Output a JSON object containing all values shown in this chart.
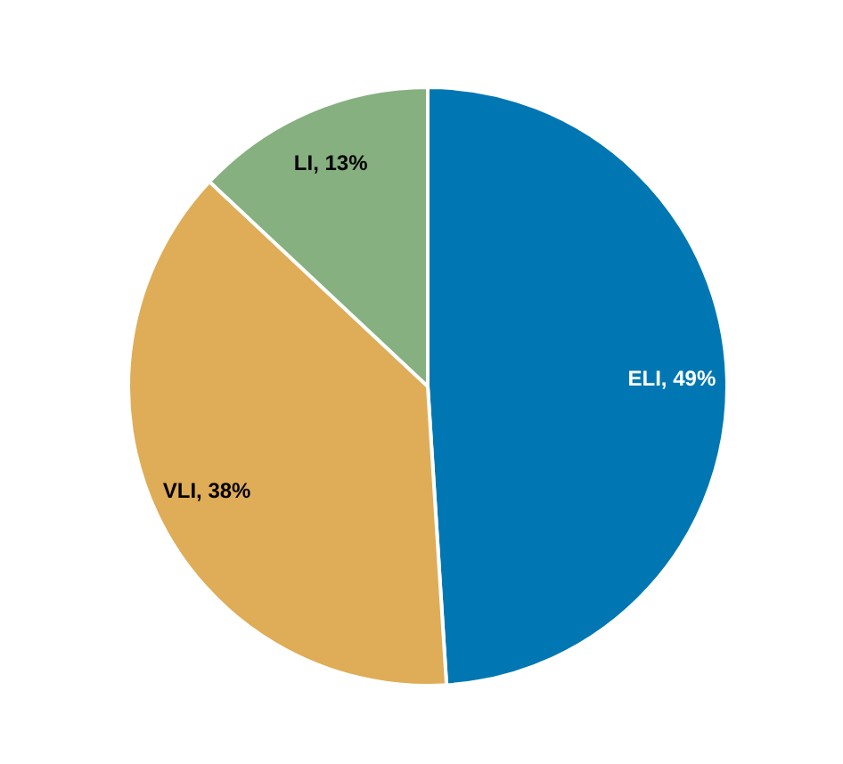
{
  "chart_data": {
    "type": "pie",
    "categories": [
      "ELI",
      "VLI",
      "LI"
    ],
    "values": [
      49,
      38,
      13
    ],
    "colors": [
      "#0077b3",
      "#dfac57",
      "#86b07f"
    ],
    "value_labels": [
      "49%",
      "38%",
      "13%"
    ]
  }
}
